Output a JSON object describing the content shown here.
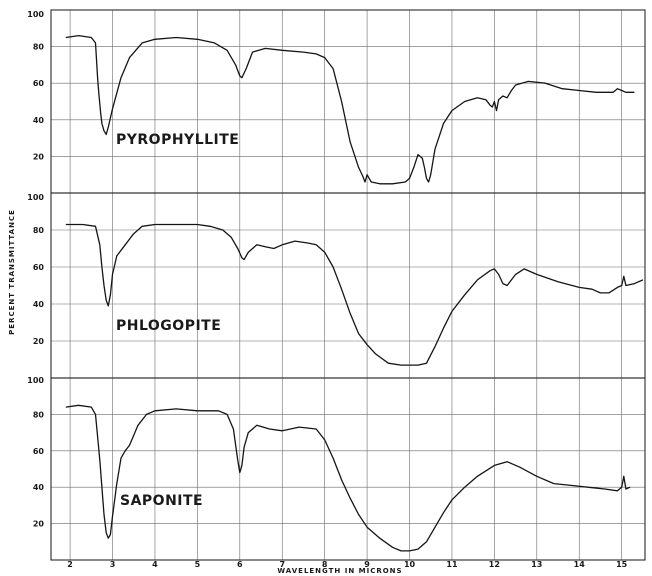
{
  "chart_data": {
    "type": "line",
    "xlabel": "WAVELENGTH IN MICRONS",
    "ylabel": "PERCENT TRANSMITTANCE",
    "xlim": [
      1.55,
      15.55
    ],
    "ylim": [
      0,
      100
    ],
    "x_ticks": [
      2,
      3,
      4,
      5,
      6,
      7,
      8,
      9,
      10,
      11,
      12,
      13,
      14,
      15
    ],
    "x_tick_labels": [
      "2",
      "3",
      "4",
      "5",
      "6",
      "7",
      "8",
      "9",
      "10",
      "11",
      "12",
      "13",
      "14",
      "15"
    ],
    "y_ticks": [
      20,
      40,
      60,
      80,
      100
    ],
    "y_tick_labels": [
      "20",
      "40",
      "60",
      "80",
      "100"
    ],
    "grid": true,
    "panels": [
      {
        "label": "PYROPHYLLITE",
        "series": [
          {
            "x": [
              1.9,
              2.2,
              2.5,
              2.6,
              2.65,
              2.68,
              2.72,
              2.75,
              2.8,
              2.85,
              2.9,
              3.0,
              3.2,
              3.4,
              3.7,
              4.0,
              4.5,
              5.0,
              5.4,
              5.7,
              5.9,
              6.0,
              6.05,
              6.15,
              6.3,
              6.6,
              7.0,
              7.5,
              7.8,
              8.0,
              8.2,
              8.4,
              8.6,
              8.8,
              8.9,
              8.95,
              9.0,
              9.05,
              9.1,
              9.3,
              9.6,
              9.9,
              10.0,
              10.1,
              10.2,
              10.3,
              10.35,
              10.4,
              10.45,
              10.5,
              10.6,
              10.8,
              11.0,
              11.3,
              11.6,
              11.8,
              11.9,
              11.95,
              12.0,
              12.05,
              12.1,
              12.2,
              12.3,
              12.4,
              12.5,
              12.8,
              13.2,
              13.6,
              14.0,
              14.4,
              14.8,
              14.9,
              15.0,
              15.1,
              15.3
            ],
            "y": [
              85,
              86,
              85,
              82,
              62,
              54,
              44,
              38,
              34,
              32,
              36,
              46,
              63,
              74,
              82,
              84,
              85,
              84,
              82,
              78,
              70,
              64,
              63,
              68,
              77,
              79,
              78,
              77,
              76,
              74,
              68,
              50,
              28,
              14,
              9,
              6,
              10,
              8,
              6,
              5,
              5,
              6,
              8,
              14,
              21,
              19,
              14,
              8,
              6,
              10,
              24,
              38,
              45,
              50,
              52,
              51,
              48,
              47,
              50,
              45,
              51,
              53,
              52,
              56,
              59,
              61,
              60,
              57,
              56,
              55,
              55,
              57,
              56,
              55,
              55
            ]
          }
        ]
      },
      {
        "label": "PHLOGOPITE",
        "series": [
          {
            "x": [
              1.9,
              2.3,
              2.6,
              2.7,
              2.75,
              2.8,
              2.85,
              2.9,
              2.95,
              3.0,
              3.1,
              3.3,
              3.5,
              3.7,
              4.0,
              4.5,
              5.0,
              5.3,
              5.6,
              5.8,
              5.95,
              6.05,
              6.1,
              6.2,
              6.4,
              6.6,
              6.8,
              7.0,
              7.3,
              7.6,
              7.8,
              8.0,
              8.2,
              8.4,
              8.6,
              8.8,
              9.0,
              9.2,
              9.5,
              9.8,
              10.0,
              10.2,
              10.4,
              10.6,
              10.8,
              11.0,
              11.3,
              11.6,
              11.9,
              12.0,
              12.1,
              12.2,
              12.3,
              12.5,
              12.7,
              13.0,
              13.5,
              14.0,
              14.3,
              14.5,
              14.7,
              14.9,
              15.0,
              15.05,
              15.1,
              15.3,
              15.5
            ],
            "y": [
              83,
              83,
              82,
              72,
              60,
              50,
              42,
              39,
              45,
              56,
              66,
              72,
              78,
              82,
              83,
              83,
              83,
              82,
              80,
              76,
              70,
              65,
              64,
              68,
              72,
              71,
              70,
              72,
              74,
              73,
              72,
              68,
              60,
              48,
              35,
              24,
              18,
              13,
              8,
              7,
              7,
              7,
              8,
              17,
              27,
              36,
              45,
              53,
              58,
              59,
              56,
              51,
              50,
              56,
              59,
              56,
              52,
              49,
              48,
              46,
              46,
              49,
              50,
              55,
              50,
              51,
              53
            ]
          }
        ]
      },
      {
        "label": "SAPONITE",
        "series": [
          {
            "x": [
              1.9,
              2.2,
              2.5,
              2.6,
              2.7,
              2.75,
              2.8,
              2.85,
              2.9,
              2.95,
              3.0,
              3.1,
              3.2,
              3.3,
              3.4,
              3.6,
              3.8,
              4.0,
              4.5,
              5.0,
              5.5,
              5.7,
              5.85,
              5.95,
              6.0,
              6.05,
              6.1,
              6.2,
              6.4,
              6.7,
              7.0,
              7.4,
              7.8,
              8.0,
              8.2,
              8.4,
              8.6,
              8.8,
              9.0,
              9.3,
              9.6,
              9.8,
              10.0,
              10.2,
              10.4,
              10.6,
              10.8,
              11.0,
              11.3,
              11.6,
              12.0,
              12.3,
              12.6,
              13.0,
              13.4,
              13.8,
              14.2,
              14.6,
              14.9,
              15.0,
              15.05,
              15.1,
              15.2
            ],
            "y": [
              84,
              85,
              84,
              80,
              55,
              40,
              25,
              15,
              12,
              14,
              24,
              42,
              56,
              60,
              63,
              74,
              80,
              82,
              83,
              82,
              82,
              80,
              72,
              55,
              48,
              52,
              62,
              70,
              74,
              72,
              71,
              73,
              72,
              66,
              56,
              44,
              34,
              25,
              18,
              12,
              7,
              5,
              5,
              6,
              10,
              18,
              26,
              33,
              40,
              46,
              52,
              54,
              51,
              46,
              42,
              41,
              40,
              39,
              38,
              40,
              46,
              39,
              40
            ]
          }
        ]
      }
    ]
  }
}
